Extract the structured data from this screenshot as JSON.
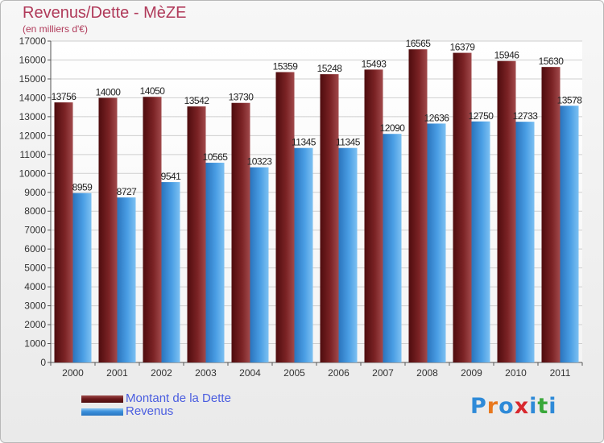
{
  "header": {
    "title": "Revenus/Dette - MèZE",
    "subtitle": "(en milliers d'€)"
  },
  "colors": {
    "dette": "#6e1a1c",
    "revenus": "#3a8fdb",
    "title": "#b03a5a",
    "legend_text": "#4a5de0"
  },
  "chart_data": {
    "type": "bar",
    "title": "Revenus/Dette - MèZE",
    "subtitle": "(en milliers d'€)",
    "xlabel": "",
    "ylabel": "",
    "categories": [
      "2000",
      "2001",
      "2002",
      "2003",
      "2004",
      "2005",
      "2006",
      "2007",
      "2008",
      "2009",
      "2010",
      "2011"
    ],
    "series": [
      {
        "name": "Montant de la Dette",
        "color": "#6e1a1c",
        "values": [
          13756,
          14000,
          14050,
          13542,
          13730,
          15359,
          15248,
          15493,
          16565,
          16379,
          15946,
          15630
        ]
      },
      {
        "name": "Revenus",
        "color": "#3a8fdb",
        "values": [
          8959,
          8727,
          9541,
          10565,
          10323,
          11345,
          11345,
          12090,
          12636,
          12750,
          12733,
          13578
        ]
      }
    ],
    "ylim": [
      0,
      17000
    ],
    "yticks": [
      0,
      1000,
      2000,
      3000,
      4000,
      5000,
      6000,
      7000,
      8000,
      9000,
      10000,
      11000,
      12000,
      13000,
      14000,
      15000,
      16000,
      17000
    ],
    "grid": true,
    "legend_position": "bottom-left",
    "data_labels": true
  },
  "legend": [
    {
      "label": "Montant de la Dette"
    },
    {
      "label": "Revenus"
    }
  ],
  "logo": {
    "text": "Proxiti",
    "letter_colors": [
      "#2e8ad8",
      "#e8781e",
      "#2e8ad8",
      "#d8282e",
      "#2e8ad8",
      "#3aa83a",
      "#2e8ad8"
    ]
  }
}
